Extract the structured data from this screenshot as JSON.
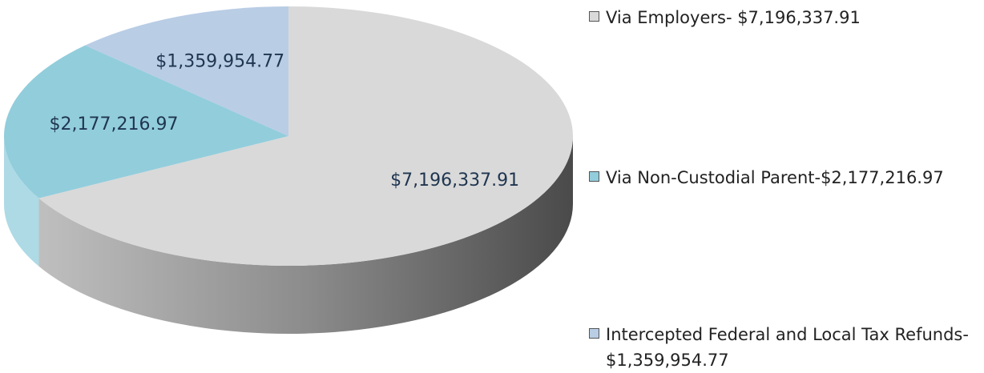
{
  "chart_data": {
    "type": "pie",
    "categories": [
      "Via Employers- $7,196,337.91",
      "Via Non-Custodial Parent-$2,177,216.97",
      "Intercepted Federal and Local Tax Refunds- $1,359,954.77"
    ],
    "values": [
      7196337.91,
      2177216.97,
      1359954.77
    ],
    "value_labels": [
      "$7,196,337.91",
      "$2,177,216.97",
      "$1,359,954.77"
    ],
    "colors": [
      "#d9d9d9",
      "#92cddc",
      "#b9cde5"
    ],
    "legend": "right"
  }
}
